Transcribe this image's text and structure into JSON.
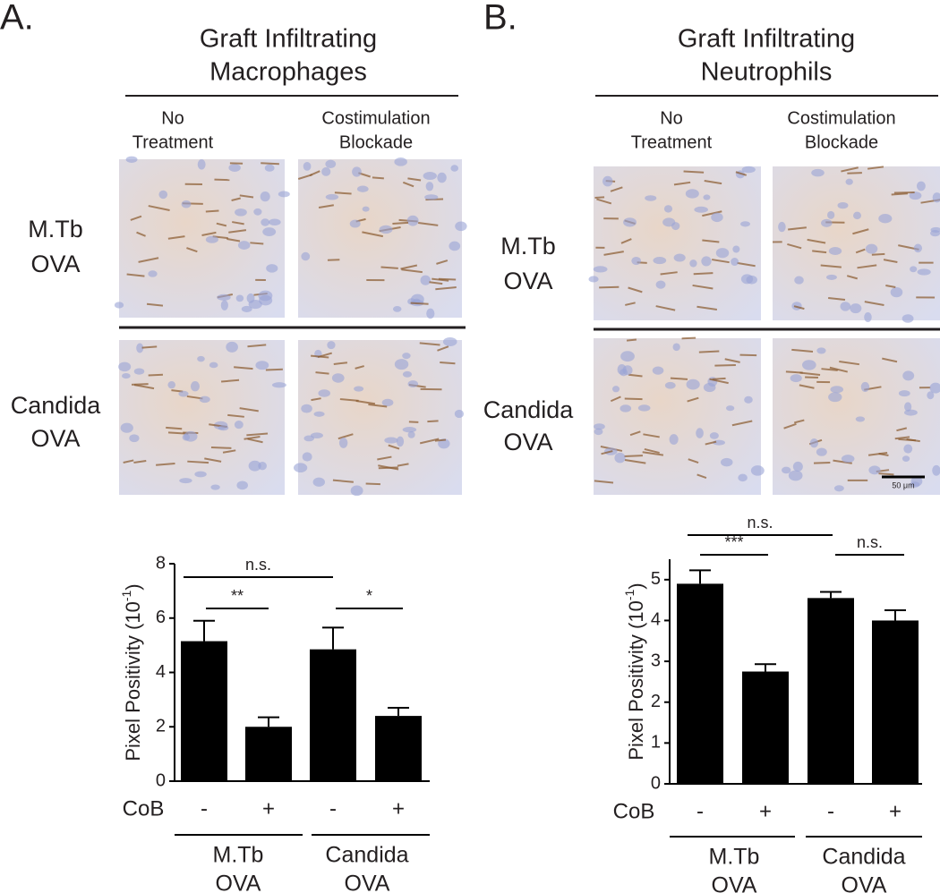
{
  "chart_data": [
    {
      "type": "bar",
      "panel_label": "A.",
      "heading": [
        "Graft Infiltrating",
        "Macrophages"
      ],
      "column_labels": [
        [
          "No",
          "Treatment"
        ],
        [
          "Costimulation",
          "Blockade"
        ]
      ],
      "row_labels": [
        [
          "M.Tb",
          "OVA"
        ],
        [
          "Candida",
          "OVA"
        ]
      ],
      "y_label": "Pixel Positivity (10",
      "y_label_sup": "-1",
      "y_label_end": ")",
      "x_label": "CoB",
      "categories": [
        "-",
        "+",
        "-",
        "+"
      ],
      "groups": [
        [
          "M.Tb",
          "OVA"
        ],
        [
          "Candida",
          "OVA"
        ]
      ],
      "values": [
        5.15,
        2.0,
        4.85,
        2.4
      ],
      "errors": [
        0.75,
        0.35,
        0.8,
        0.3
      ],
      "color": "#000000",
      "ylim": [
        0,
        8
      ],
      "yticks": [
        0,
        2,
        4,
        6,
        8
      ],
      "significance": [
        "n.s.",
        "**",
        "*"
      ]
    },
    {
      "type": "bar",
      "panel_label": "B.",
      "heading": [
        "Graft Infiltrating",
        "Neutrophils"
      ],
      "column_labels": [
        [
          "No",
          "Treatment"
        ],
        [
          "Costimulation",
          "Blockade"
        ]
      ],
      "row_labels": [
        [
          "M.Tb",
          "OVA"
        ],
        [
          "Candida",
          "OVA"
        ]
      ],
      "scale_bar": "50 μm",
      "y_label": "Pixel Positivity (10",
      "y_label_sup": "-1",
      "y_label_end": ")",
      "x_label": "CoB",
      "categories": [
        "-",
        "+",
        "-",
        "+"
      ],
      "groups": [
        [
          "M.Tb",
          "OVA"
        ],
        [
          "Candida",
          "OVA"
        ]
      ],
      "values": [
        4.9,
        2.75,
        4.55,
        4.0
      ],
      "errors": [
        0.33,
        0.18,
        0.15,
        0.25
      ],
      "color": "#000000",
      "ylim": [
        0,
        5.5
      ],
      "yticks": [
        0,
        1,
        2,
        3,
        4,
        5
      ],
      "significance": [
        "n.s.",
        "***",
        "n.s."
      ]
    }
  ]
}
